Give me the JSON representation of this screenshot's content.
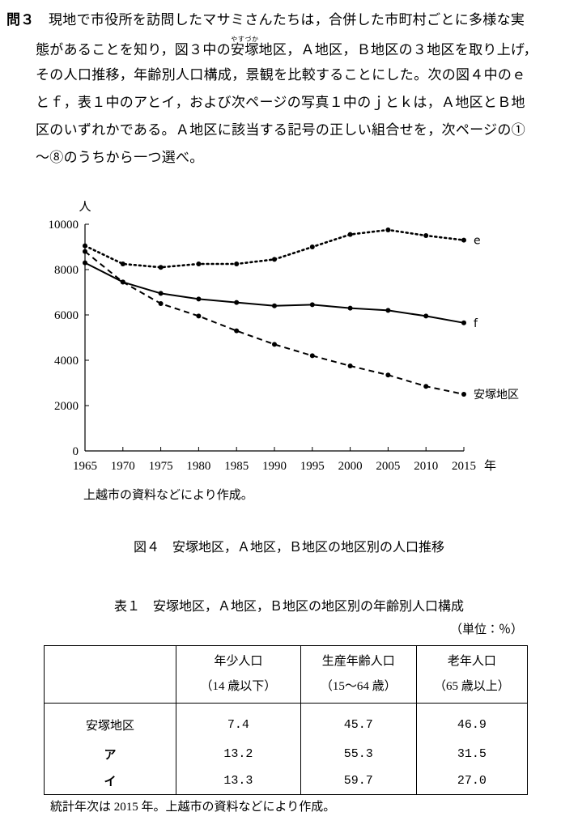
{
  "question": {
    "label": "問３",
    "lines": [
      "現地で市役所を訪問したマサミさんたちは，合併した市町村ごとに多様な実",
      "その人口推移，年齢別人口構成，景観を比較することにした。次の図４中のｅ",
      "とｆ，表１中のアとイ，および次ページの写真１中のｊとｋは，Ａ地区とＢ地",
      "区のいずれかである。Ａ地区に該当する記号の正しい組合せを，次ページの①",
      "～⑧のうちから一つ選べ。"
    ],
    "line2": {
      "before": "態があることを知り，図３中の",
      "ruby_base": "安塚",
      "ruby_text": "やすづか",
      "after": "地区，Ａ地区，Ｂ地区の３地区を取り上げ，"
    }
  },
  "chart_data": {
    "type": "line",
    "y_label": "人",
    "x_label": "年",
    "x": [
      1965,
      1970,
      1975,
      1980,
      1985,
      1990,
      1995,
      2000,
      2005,
      2010,
      2015
    ],
    "xlim": [
      1965,
      2015
    ],
    "xticks": [
      1965,
      1970,
      1975,
      1980,
      1985,
      1990,
      1995,
      2000,
      2005,
      2010,
      2015
    ],
    "ylim": [
      0,
      10000
    ],
    "yticks": [
      0,
      2000,
      4000,
      6000,
      8000,
      10000
    ],
    "grid": false,
    "series": [
      {
        "name": "e",
        "color": "#000000",
        "dash": "dotted",
        "values": [
          9050,
          8250,
          8100,
          8250,
          8250,
          8450,
          9000,
          9550,
          9750,
          9500,
          9300
        ]
      },
      {
        "name": "f",
        "color": "#000000",
        "dash": "solid",
        "values": [
          8300,
          7450,
          6950,
          6700,
          6550,
          6400,
          6450,
          6300,
          6200,
          5950,
          5650
        ]
      },
      {
        "name": "安塚地区",
        "color": "#000000",
        "dash": "dashed",
        "values": [
          8800,
          7450,
          6500,
          5950,
          5300,
          4700,
          4200,
          3750,
          3350,
          2850,
          2500
        ]
      }
    ],
    "source": "上越市の資料などにより作成。",
    "caption": "図４　安塚地区，Ａ地区，Ｂ地区の地区別の人口推移"
  },
  "table": {
    "title": "表１　安塚地区，Ａ地区，Ｂ地区の地区別の年齢別人口構成",
    "unit": "（単位：％）",
    "header": [
      [
        "年少人口",
        "（14 歳以下）"
      ],
      [
        "生産年齢人口",
        "（15～64 歳）"
      ],
      [
        "老年人口",
        "（65 歳以上）"
      ]
    ],
    "rows": [
      [
        "安塚地区",
        "7.4",
        "45.7",
        "46.9"
      ],
      [
        "ア",
        "13.2",
        "55.3",
        "31.5"
      ],
      [
        "イ",
        "13.3",
        "59.7",
        "27.0"
      ]
    ],
    "note": "統計年次は 2015 年。上越市の資料などにより作成。"
  }
}
